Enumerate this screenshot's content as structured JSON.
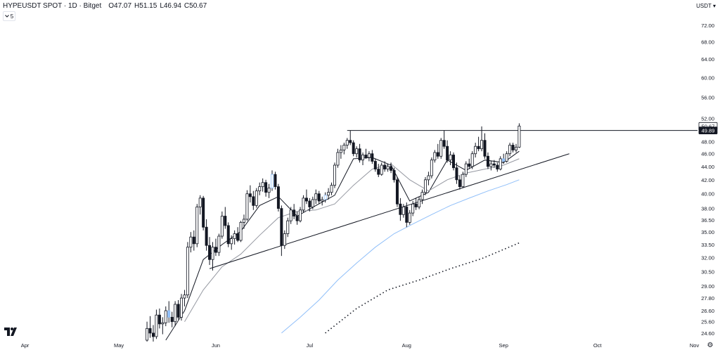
{
  "header": {
    "symbol": "HYPEUSDT SPOT · 1D · Bitget",
    "o_label": "O",
    "o_value": "47.07",
    "h_label": "H",
    "h_value": "51.15",
    "l_label": "L",
    "l_value": "46.94",
    "c_label": "C",
    "c_value": "50.67",
    "indicator_count": "5",
    "chevron_icon": "chevron-down-icon"
  },
  "currency_menu": "USDT ▾",
  "colors": {
    "candle": "#131722",
    "ema_short": "#131722",
    "ema_mid": "#9598a1",
    "ema_blue": "#90bff9",
    "ema_long": "#131722",
    "horizontal_line": "#131722",
    "trend_line": "#131722",
    "price_label_bg": "#131722",
    "price_label_fg": "#ffffff",
    "highlight_candle": "#90bff9"
  },
  "chart_data": {
    "type": "candlestick",
    "title": "HYPEUSDT SPOT · 1D · Bitget",
    "y_scale": "log",
    "ylim": [
      24.0,
      76.0
    ],
    "y_ticks": [
      "72.00",
      "68.00",
      "64.00",
      "60.00",
      "56.00",
      "52.00",
      "48.00",
      "46.00",
      "44.00",
      "42.00",
      "40.00",
      "38.00",
      "36.50",
      "35.00",
      "33.50",
      "32.00",
      "30.50",
      "29.00",
      "27.80",
      "26.60",
      "25.60",
      "24.60"
    ],
    "x_range": [
      "2025-03-24",
      "2025-11-02"
    ],
    "x_ticks": [
      {
        "date": "2025-04-01",
        "label": "Apr"
      },
      {
        "date": "2025-05-01",
        "label": "May"
      },
      {
        "date": "2025-06-01",
        "label": "Jun"
      },
      {
        "date": "2025-07-01",
        "label": "Jul"
      },
      {
        "date": "2025-08-01",
        "label": "Aug"
      },
      {
        "date": "2025-09-01",
        "label": "Sep"
      },
      {
        "date": "2025-10-01",
        "label": "Oct"
      },
      {
        "date": "2025-11-01",
        "label": "Nov"
      }
    ],
    "price_labels": [
      {
        "value": 50.67,
        "text": "50.67",
        "style": "current"
      },
      {
        "value": 49.89,
        "text": "49.89",
        "style": "line"
      }
    ],
    "candles": [
      [
        "2025-05-10",
        24.0,
        25.6,
        23.6,
        25.0
      ],
      [
        "2025-05-11",
        25.0,
        26.1,
        24.2,
        24.6
      ],
      [
        "2025-05-12",
        24.6,
        25.3,
        23.8,
        24.3
      ],
      [
        "2025-05-13",
        24.3,
        26.7,
        24.1,
        26.2
      ],
      [
        "2025-05-14",
        26.2,
        26.8,
        25.0,
        25.4
      ],
      [
        "2025-05-15",
        25.4,
        26.0,
        24.5,
        25.5
      ],
      [
        "2025-05-16",
        25.5,
        27.0,
        25.2,
        26.6
      ],
      [
        "2025-05-17",
        26.6,
        27.5,
        25.5,
        26.0
      ],
      [
        "2025-05-18",
        26.0,
        26.5,
        25.1,
        25.6
      ],
      [
        "2025-05-19",
        25.6,
        27.5,
        25.2,
        27.2
      ],
      [
        "2025-05-20",
        27.2,
        27.6,
        25.8,
        26.0
      ],
      [
        "2025-05-21",
        26.0,
        28.2,
        25.7,
        27.8
      ],
      [
        "2025-05-22",
        27.8,
        28.6,
        27.0,
        28.1
      ],
      [
        "2025-05-23",
        28.1,
        33.8,
        27.8,
        33.2
      ],
      [
        "2025-05-24",
        33.2,
        35.0,
        32.6,
        34.4
      ],
      [
        "2025-05-25",
        34.4,
        35.2,
        32.8,
        33.6
      ],
      [
        "2025-05-26",
        33.6,
        38.6,
        33.2,
        38.2
      ],
      [
        "2025-05-27",
        38.2,
        39.8,
        37.2,
        39.4
      ],
      [
        "2025-05-28",
        39.4,
        39.7,
        35.2,
        35.6
      ],
      [
        "2025-05-29",
        35.6,
        36.6,
        32.8,
        33.4
      ],
      [
        "2025-05-30",
        33.4,
        34.4,
        31.2,
        31.8
      ],
      [
        "2025-05-31",
        31.8,
        33.8,
        30.6,
        33.2
      ],
      [
        "2025-06-01",
        33.2,
        34.2,
        32.2,
        32.6
      ],
      [
        "2025-06-02",
        32.6,
        34.8,
        32.2,
        34.5
      ],
      [
        "2025-06-03",
        34.5,
        37.6,
        34.2,
        37.0
      ],
      [
        "2025-06-04",
        37.0,
        38.2,
        35.4,
        35.8
      ],
      [
        "2025-06-05",
        35.8,
        36.2,
        33.2,
        33.6
      ],
      [
        "2025-06-06",
        33.6,
        34.6,
        32.9,
        34.2
      ],
      [
        "2025-06-07",
        34.2,
        35.2,
        33.5,
        34.8
      ],
      [
        "2025-06-08",
        34.8,
        35.6,
        33.8,
        34.0
      ],
      [
        "2025-06-09",
        34.0,
        36.4,
        33.8,
        36.2
      ],
      [
        "2025-06-10",
        36.2,
        37.2,
        35.4,
        36.6
      ],
      [
        "2025-06-11",
        36.6,
        40.5,
        36.4,
        40.0
      ],
      [
        "2025-06-12",
        40.0,
        41.2,
        38.8,
        39.6
      ],
      [
        "2025-06-13",
        39.6,
        40.4,
        37.8,
        38.4
      ],
      [
        "2025-06-14",
        38.4,
        40.8,
        38.1,
        40.4
      ],
      [
        "2025-06-15",
        40.4,
        41.6,
        39.8,
        41.0
      ],
      [
        "2025-06-16",
        41.0,
        42.2,
        40.3,
        41.6
      ],
      [
        "2025-06-17",
        41.6,
        42.0,
        39.6,
        40.2
      ],
      [
        "2025-06-18",
        40.2,
        41.4,
        39.4,
        40.8
      ],
      [
        "2025-06-19",
        40.8,
        43.4,
        40.4,
        42.8
      ],
      [
        "2025-06-20",
        42.8,
        43.2,
        40.6,
        41.0
      ],
      [
        "2025-06-21",
        41.0,
        41.4,
        37.6,
        38.0
      ],
      [
        "2025-06-22",
        38.0,
        38.4,
        32.2,
        33.4
      ],
      [
        "2025-06-23",
        33.4,
        35.2,
        33.0,
        34.8
      ],
      [
        "2025-06-24",
        34.8,
        36.8,
        34.4,
        36.4
      ],
      [
        "2025-06-25",
        36.4,
        38.2,
        36.0,
        37.8
      ],
      [
        "2025-06-26",
        37.8,
        38.6,
        36.6,
        37.0
      ],
      [
        "2025-06-27",
        37.0,
        37.6,
        35.9,
        36.4
      ],
      [
        "2025-06-28",
        36.4,
        38.2,
        36.2,
        37.8
      ],
      [
        "2025-06-29",
        37.8,
        39.8,
        37.5,
        39.4
      ],
      [
        "2025-06-30",
        39.4,
        40.6,
        38.6,
        39.0
      ],
      [
        "2025-07-01",
        39.0,
        39.4,
        37.6,
        38.2
      ],
      [
        "2025-07-02",
        38.2,
        39.6,
        37.9,
        39.2
      ],
      [
        "2025-07-03",
        39.2,
        40.6,
        38.6,
        40.0
      ],
      [
        "2025-07-04",
        40.0,
        40.4,
        38.6,
        39.0
      ],
      [
        "2025-07-05",
        39.0,
        39.6,
        38.4,
        39.2
      ],
      [
        "2025-07-06",
        39.2,
        40.2,
        38.8,
        39.8
      ],
      [
        "2025-07-07",
        39.8,
        40.8,
        39.2,
        40.2
      ],
      [
        "2025-07-08",
        40.2,
        41.6,
        39.8,
        41.2
      ],
      [
        "2025-07-09",
        41.2,
        44.6,
        40.8,
        44.2
      ],
      [
        "2025-07-10",
        44.2,
        46.8,
        43.8,
        46.2
      ],
      [
        "2025-07-11",
        46.2,
        47.4,
        45.2,
        46.6
      ],
      [
        "2025-07-12",
        46.6,
        47.8,
        45.9,
        47.4
      ],
      [
        "2025-07-13",
        47.4,
        48.6,
        46.8,
        48.2
      ],
      [
        "2025-07-14",
        48.2,
        49.9,
        47.4,
        47.8
      ],
      [
        "2025-07-15",
        47.8,
        48.2,
        45.6,
        46.0
      ],
      [
        "2025-07-16",
        46.0,
        47.2,
        45.4,
        46.8
      ],
      [
        "2025-07-17",
        46.8,
        47.6,
        44.6,
        45.0
      ],
      [
        "2025-07-18",
        45.0,
        46.2,
        44.2,
        45.8
      ],
      [
        "2025-07-19",
        45.8,
        46.8,
        45.2,
        45.4
      ],
      [
        "2025-07-20",
        45.4,
        46.4,
        44.8,
        46.0
      ],
      [
        "2025-07-21",
        46.0,
        46.6,
        44.4,
        44.8
      ],
      [
        "2025-07-22",
        44.8,
        45.2,
        43.2,
        43.6
      ],
      [
        "2025-07-23",
        43.6,
        44.4,
        42.4,
        42.8
      ],
      [
        "2025-07-24",
        42.8,
        44.6,
        42.6,
        44.2
      ],
      [
        "2025-07-25",
        44.2,
        44.8,
        43.2,
        43.6
      ],
      [
        "2025-07-26",
        43.6,
        44.4,
        43.2,
        44.0
      ],
      [
        "2025-07-27",
        44.0,
        44.6,
        43.0,
        43.4
      ],
      [
        "2025-07-28",
        43.4,
        43.8,
        41.6,
        42.0
      ],
      [
        "2025-07-29",
        42.0,
        42.4,
        38.2,
        38.6
      ],
      [
        "2025-07-30",
        38.6,
        39.4,
        36.4,
        37.2
      ],
      [
        "2025-07-31",
        37.2,
        38.6,
        36.8,
        38.2
      ],
      [
        "2025-08-01",
        38.2,
        38.8,
        35.6,
        36.2
      ],
      [
        "2025-08-02",
        36.2,
        37.8,
        35.9,
        37.4
      ],
      [
        "2025-08-03",
        37.4,
        39.0,
        37.0,
        38.6
      ],
      [
        "2025-08-04",
        38.6,
        39.4,
        37.8,
        38.2
      ],
      [
        "2025-08-05",
        38.2,
        39.6,
        37.9,
        39.2
      ],
      [
        "2025-08-06",
        39.2,
        40.6,
        38.6,
        40.2
      ],
      [
        "2025-08-07",
        40.2,
        42.4,
        39.8,
        42.0
      ],
      [
        "2025-08-08",
        42.0,
        43.2,
        41.2,
        42.6
      ],
      [
        "2025-08-09",
        42.6,
        45.4,
        42.2,
        45.0
      ],
      [
        "2025-08-10",
        45.0,
        46.6,
        44.6,
        46.2
      ],
      [
        "2025-08-11",
        46.2,
        47.6,
        45.2,
        45.6
      ],
      [
        "2025-08-12",
        45.6,
        48.6,
        45.2,
        48.2
      ],
      [
        "2025-08-13",
        48.2,
        49.9,
        46.8,
        47.2
      ],
      [
        "2025-08-14",
        47.2,
        48.2,
        44.6,
        45.0
      ],
      [
        "2025-08-15",
        45.0,
        46.4,
        44.2,
        45.8
      ],
      [
        "2025-08-16",
        45.8,
        46.2,
        43.4,
        43.8
      ],
      [
        "2025-08-17",
        43.8,
        44.6,
        41.4,
        42.0
      ],
      [
        "2025-08-18",
        42.0,
        42.6,
        40.6,
        41.0
      ],
      [
        "2025-08-19",
        41.0,
        43.2,
        40.8,
        42.8
      ],
      [
        "2025-08-20",
        42.8,
        44.8,
        42.4,
        44.4
      ],
      [
        "2025-08-21",
        44.4,
        45.2,
        43.6,
        44.0
      ],
      [
        "2025-08-22",
        44.0,
        46.4,
        43.6,
        46.0
      ],
      [
        "2025-08-23",
        46.0,
        47.8,
        45.4,
        47.2
      ],
      [
        "2025-08-24",
        47.2,
        48.8,
        46.4,
        46.8
      ],
      [
        "2025-08-25",
        46.8,
        50.6,
        46.4,
        48.2
      ],
      [
        "2025-08-26",
        48.2,
        49.4,
        45.2,
        45.6
      ],
      [
        "2025-08-27",
        45.6,
        46.2,
        43.6,
        44.0
      ],
      [
        "2025-08-28",
        44.0,
        44.8,
        43.4,
        44.4
      ],
      [
        "2025-08-29",
        44.4,
        45.0,
        43.8,
        44.2
      ],
      [
        "2025-08-30",
        44.2,
        44.6,
        43.2,
        43.6
      ],
      [
        "2025-08-31",
        43.6,
        45.6,
        43.4,
        45.2
      ],
      [
        "2025-09-01",
        45.2,
        46.0,
        44.4,
        44.8
      ],
      [
        "2025-09-02",
        44.8,
        46.4,
        44.6,
        46.0
      ],
      [
        "2025-09-03",
        46.0,
        47.8,
        45.6,
        47.4
      ],
      [
        "2025-09-04",
        47.4,
        47.8,
        46.2,
        46.6
      ],
      [
        "2025-09-05",
        46.6,
        47.6,
        46.2,
        47.07
      ],
      [
        "2025-09-06",
        47.07,
        51.15,
        46.94,
        50.67
      ]
    ],
    "highlighted_candles": [
      "2025-05-17",
      "2025-06-19",
      "2025-07-06",
      "2025-09-01"
    ],
    "series": [
      {
        "style": "solid-dark",
        "x": [
          "2025-05-16",
          "2025-05-22",
          "2025-05-28",
          "2025-06-03",
          "2025-06-09",
          "2025-06-15",
          "2025-06-21",
          "2025-06-27",
          "2025-07-03",
          "2025-07-09",
          "2025-07-15",
          "2025-07-21",
          "2025-07-27",
          "2025-08-02",
          "2025-08-08",
          "2025-08-14",
          "2025-08-20",
          "2025-08-26",
          "2025-09-01",
          "2025-09-06"
        ],
        "values": [
          24.0,
          26.6,
          31.8,
          33.5,
          35.1,
          38.4,
          39.6,
          37.0,
          38.4,
          39.8,
          45.2,
          45.4,
          44.2,
          39.0,
          40.2,
          45.0,
          43.4,
          45.0,
          44.6,
          46.4
        ]
      },
      {
        "style": "solid-gray",
        "x": [
          "2025-05-22",
          "2025-05-28",
          "2025-06-03",
          "2025-06-09",
          "2025-06-15",
          "2025-06-21",
          "2025-06-27",
          "2025-07-03",
          "2025-07-09",
          "2025-07-15",
          "2025-07-21",
          "2025-07-27",
          "2025-08-02",
          "2025-08-08",
          "2025-08-14",
          "2025-08-20",
          "2025-08-26",
          "2025-09-01",
          "2025-09-06"
        ],
        "values": [
          25.6,
          28.6,
          31.0,
          32.4,
          34.6,
          36.8,
          37.6,
          37.8,
          38.6,
          41.2,
          43.6,
          44.4,
          42.0,
          40.4,
          42.0,
          43.0,
          43.6,
          44.2,
          45.2
        ]
      },
      {
        "style": "solid-blue",
        "x": [
          "2025-06-22",
          "2025-06-28",
          "2025-07-04",
          "2025-07-10",
          "2025-07-16",
          "2025-07-22",
          "2025-07-28",
          "2025-08-03",
          "2025-08-09",
          "2025-08-15",
          "2025-08-21",
          "2025-08-27",
          "2025-09-02",
          "2025-09-06"
        ],
        "values": [
          24.6,
          26.0,
          27.6,
          29.6,
          31.4,
          33.2,
          34.8,
          36.0,
          37.2,
          38.4,
          39.4,
          40.4,
          41.3,
          42.0
        ]
      },
      {
        "style": "dotted-dark",
        "x": [
          "2025-07-06",
          "2025-07-16",
          "2025-07-26",
          "2025-08-05",
          "2025-08-15",
          "2025-08-25",
          "2025-09-06"
        ],
        "values": [
          24.6,
          26.8,
          28.6,
          29.6,
          30.8,
          31.9,
          33.7
        ]
      }
    ],
    "drawings": [
      {
        "type": "horizontal_ray",
        "x_start": "2025-07-13",
        "x_end": "2025-11-02",
        "value": 49.89
      },
      {
        "type": "trend_line",
        "x_start": "2025-05-30",
        "y_start": 30.8,
        "x_end": "2025-09-22",
        "y_end": 46.0
      }
    ]
  },
  "footer": {
    "logo_icon": "tradingview-logo-icon",
    "settings_icon": "settings-gear-icon"
  }
}
